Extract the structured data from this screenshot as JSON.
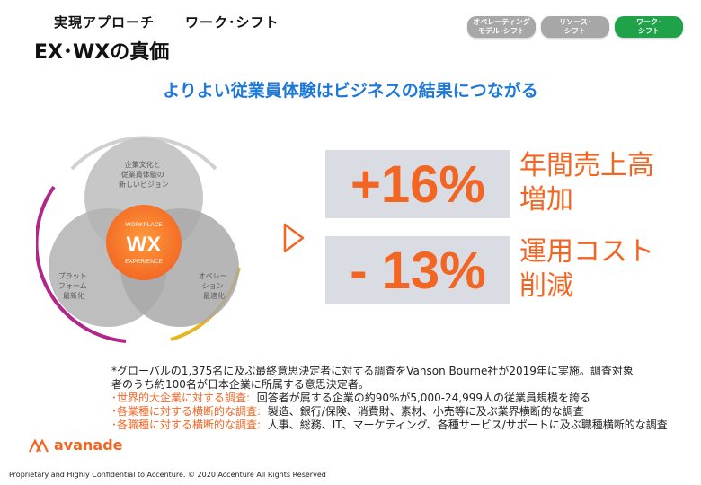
{
  "header": {
    "subtitle_left": "実現アプローチ",
    "subtitle_right": "ワーク･シフト",
    "title": "EX･WXの真価"
  },
  "tabs": [
    {
      "label": "オペレーティング\nモデル･シフト",
      "color": "#a7a7a7",
      "active": false
    },
    {
      "label": "リソース･\nシフト",
      "color": "#a7a7a7",
      "active": false
    },
    {
      "label": "ワーク･\nシフト",
      "color": "#1fa24a",
      "active": true
    }
  ],
  "headline": "よりよい従業員体験はビジネスの結果につながる",
  "venn": {
    "top": "企業文化と\n従業員体験の\n新しいビジョン",
    "left": "プラット\nフォーム\n最新化",
    "right": "オペレー\nション\n最適化",
    "center_small_top": "WORKPLACE",
    "center_big": "WX",
    "center_small_bottom": "EXPERIENCE"
  },
  "stats": [
    {
      "value": "+16%",
      "label_line1": "年間売上高",
      "label_line2": "増加"
    },
    {
      "value": "- 13%",
      "label_line1": "運用コスト",
      "label_line2": "削減"
    }
  ],
  "footnote": {
    "line1": "*グローバルの1,375名に及ぶ最終意思決定者に対する調査をVanson Bourne社が2019年に実施。調査対象",
    "line2": "者のうち約100名が日本企業に所属する意思決定者。",
    "items": [
      {
        "key": "･世界的大企業に対する調査:",
        "text": "回答者が属する企業の約90%が5,000-24,999人の従業員規模を誇る"
      },
      {
        "key": "･各業種に対する横断的な調査:",
        "text": "製造、銀行/保険、消費財、素材、小売等に及ぶ業界横断的な調査"
      },
      {
        "key": "･各職種に対する横断的な調査:",
        "text": "人事、総務、IT、マーケティング、各種サービス/サポートに及ぶ職種横断的な調査"
      }
    ]
  },
  "logo": {
    "text": "avanade"
  },
  "copyright": "Proprietary and Highly Confidential to Accenture.   © 2020 Accenture All Rights Reserved",
  "colors": {
    "accent": "#f26522",
    "headline": "#1e78d8",
    "active_tab": "#1fa24a"
  }
}
